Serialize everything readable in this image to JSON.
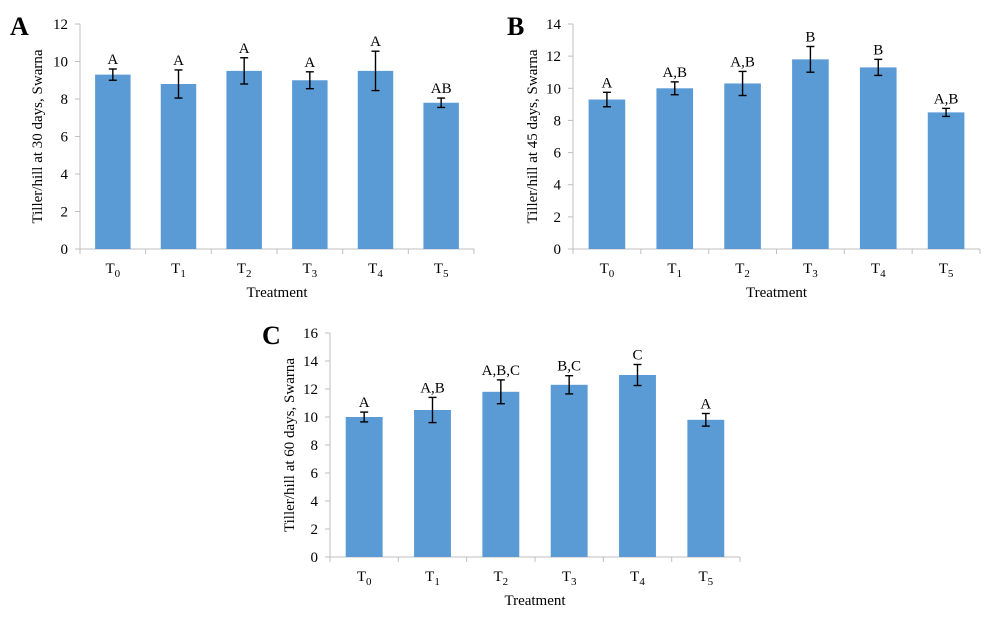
{
  "chart_data": [
    {
      "type": "bar",
      "panel": "A",
      "categories": [
        "T0",
        "T1",
        "T2",
        "T3",
        "T4",
        "T5"
      ],
      "category_labels": [
        {
          "base": "T",
          "sub": "0"
        },
        {
          "base": "T",
          "sub": "1"
        },
        {
          "base": "T",
          "sub": "2"
        },
        {
          "base": "T",
          "sub": "3"
        },
        {
          "base": "T",
          "sub": "4"
        },
        {
          "base": "T",
          "sub": "5"
        }
      ],
      "values": [
        9.3,
        8.8,
        9.5,
        9.0,
        9.5,
        7.8
      ],
      "errors": [
        0.3,
        0.75,
        0.7,
        0.45,
        1.05,
        0.25
      ],
      "significance": [
        "A",
        "A",
        "A",
        "A",
        "A",
        "AB"
      ],
      "xlabel": "Treatment",
      "ylabel": "Tiller/hill at 30 days, Swarna",
      "ylim": [
        0,
        12
      ],
      "yticks": [
        0,
        2,
        4,
        6,
        8,
        10,
        12
      ],
      "color": "#5b9bd5"
    },
    {
      "type": "bar",
      "panel": "B",
      "categories": [
        "T0",
        "T1",
        "T2",
        "T3",
        "T4",
        "T5"
      ],
      "category_labels": [
        {
          "base": "T",
          "sub": "0"
        },
        {
          "base": "T",
          "sub": "1"
        },
        {
          "base": "T",
          "sub": "2"
        },
        {
          "base": "T",
          "sub": "3"
        },
        {
          "base": "T",
          "sub": "4"
        },
        {
          "base": "T",
          "sub": "5"
        }
      ],
      "values": [
        9.3,
        10.0,
        10.3,
        11.8,
        11.3,
        8.5
      ],
      "errors": [
        0.45,
        0.4,
        0.75,
        0.8,
        0.5,
        0.25
      ],
      "significance": [
        "A",
        "A,B",
        "A,B",
        "B",
        "B",
        "A,B"
      ],
      "xlabel": "Treatment",
      "ylabel": "Tiller/hill at 45 days, Swarna",
      "ylim": [
        0,
        14
      ],
      "yticks": [
        0,
        2,
        4,
        6,
        8,
        10,
        12,
        14
      ],
      "color": "#5b9bd5"
    },
    {
      "type": "bar",
      "panel": "C",
      "categories": [
        "T0",
        "T1",
        "T2",
        "T3",
        "T4",
        "T5"
      ],
      "category_labels": [
        {
          "base": "T",
          "sub": "0"
        },
        {
          "base": "T",
          "sub": "1"
        },
        {
          "base": "T",
          "sub": "2"
        },
        {
          "base": "T",
          "sub": "3"
        },
        {
          "base": "T",
          "sub": "4"
        },
        {
          "base": "T",
          "sub": "5"
        }
      ],
      "values": [
        10.0,
        10.5,
        11.8,
        12.3,
        13.0,
        9.8
      ],
      "errors": [
        0.35,
        0.9,
        0.85,
        0.65,
        0.75,
        0.45
      ],
      "significance": [
        "A",
        "A,B",
        "A,B,C",
        "B,C",
        "C",
        "A"
      ],
      "xlabel": "Treatment",
      "ylabel": "Tiller/hill at 60 days, Swarna",
      "ylim": [
        0,
        16
      ],
      "yticks": [
        0,
        2,
        4,
        6,
        8,
        10,
        12,
        14,
        16
      ],
      "color": "#5b9bd5"
    }
  ]
}
